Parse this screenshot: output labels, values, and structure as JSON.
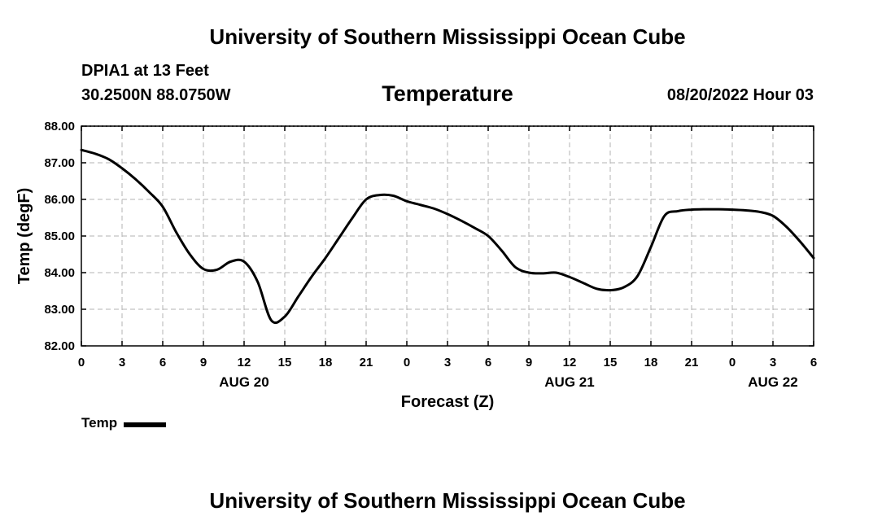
{
  "header": {
    "title": "University of Southern Mississippi Ocean Cube",
    "station": "DPIA1 at 13 Feet",
    "coords": "30.2500N  88.0750W",
    "datetime": "08/20/2022 Hour 03"
  },
  "footer": {
    "title": "University of Southern Mississippi Ocean Cube"
  },
  "chart_data": {
    "type": "line",
    "title": "Temperature",
    "xlabel": "Forecast (Z)",
    "ylabel": "Temp (degF)",
    "ylim": [
      82.0,
      88.0
    ],
    "xlim": [
      0,
      54
    ],
    "y_ticks": [
      "82.00",
      "83.00",
      "84.00",
      "85.00",
      "86.00",
      "87.00",
      "88.00"
    ],
    "x_ticks": [
      "0",
      "3",
      "6",
      "9",
      "12",
      "15",
      "18",
      "21",
      "0",
      "3",
      "6",
      "9",
      "12",
      "15",
      "18",
      "21",
      "0",
      "3",
      "6"
    ],
    "day_labels": [
      {
        "label": "AUG 20",
        "hour": 12
      },
      {
        "label": "AUG 21",
        "hour": 36
      },
      {
        "label": "AUG 22",
        "hour": 51
      }
    ],
    "grid": true,
    "legend_position": "bottom-left",
    "series": [
      {
        "name": "Temp",
        "color": "#000000",
        "x": [
          0,
          1,
          2,
          3,
          4,
          5,
          6,
          7,
          8,
          9,
          10,
          11,
          12,
          13,
          14,
          15,
          16,
          17,
          18,
          19,
          20,
          21,
          22,
          23,
          24,
          25,
          26,
          27,
          28,
          29,
          30,
          31,
          32,
          33,
          34,
          35,
          36,
          37,
          38,
          39,
          40,
          41,
          42,
          43,
          44,
          45,
          46,
          47,
          48,
          49,
          50,
          51,
          52,
          53,
          54
        ],
        "values": [
          87.35,
          87.25,
          87.1,
          86.85,
          86.55,
          86.2,
          85.8,
          85.1,
          84.5,
          84.1,
          84.08,
          84.3,
          84.3,
          83.75,
          82.7,
          82.8,
          83.35,
          83.9,
          84.4,
          84.95,
          85.5,
          86.0,
          86.12,
          86.1,
          85.95,
          85.85,
          85.75,
          85.6,
          85.42,
          85.22,
          85.0,
          84.6,
          84.15,
          84.0,
          83.98,
          84.0,
          83.88,
          83.72,
          83.56,
          83.52,
          83.6,
          83.9,
          84.7,
          85.55,
          85.68,
          85.72,
          85.73,
          85.73,
          85.72,
          85.7,
          85.66,
          85.55,
          85.25,
          84.85,
          84.4
        ]
      }
    ]
  },
  "legend": {
    "label": "Temp"
  }
}
